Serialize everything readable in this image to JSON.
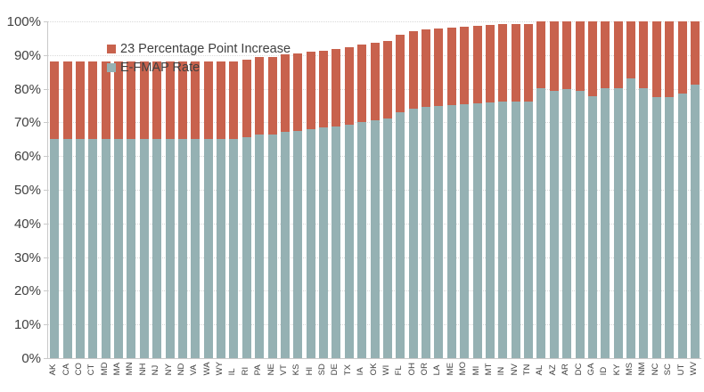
{
  "chart_data": {
    "type": "bar",
    "stacked": true,
    "title": "",
    "xlabel": "",
    "ylabel": "",
    "ylim": [
      0,
      100
    ],
    "y_tick_labels": [
      "0%",
      "10%",
      "20%",
      "30%",
      "40%",
      "50%",
      "60%",
      "70%",
      "80%",
      "90%",
      "100%"
    ],
    "grid": "horizontal-dotted",
    "legend_position": "top-left-inside",
    "cap_percent": 100,
    "increase_points": 23,
    "legend": [
      {
        "name": "23 Percentage Point Increase",
        "color": "#c8624d"
      },
      {
        "name": "E-FMAP Rate",
        "color": "#95b1b3"
      }
    ],
    "categories": [
      "AK",
      "CA",
      "CO",
      "CT",
      "MD",
      "MA",
      "MN",
      "NH",
      "NJ",
      "NY",
      "ND",
      "VA",
      "WA",
      "WY",
      "IL",
      "RI",
      "PA",
      "NE",
      "VT",
      "KS",
      "HI",
      "SD",
      "DE",
      "TX",
      "IA",
      "OK",
      "WI",
      "FL",
      "OH",
      "OR",
      "LA",
      "ME",
      "MO",
      "MI",
      "MT",
      "IN",
      "NV",
      "TN",
      "AL",
      "AZ",
      "AR",
      "DC",
      "GA",
      "ID",
      "KY",
      "MS",
      "NM",
      "NC",
      "SC",
      "UT",
      "WV"
    ],
    "series": [
      {
        "name": "E-FMAP Rate",
        "color": "#95b1b3",
        "values": [
          65,
          65,
          65,
          65,
          65,
          65,
          65,
          65,
          65,
          65,
          65,
          65,
          65,
          65,
          65,
          65.7,
          66.3,
          66.4,
          67.1,
          67.5,
          68,
          68.4,
          68.8,
          69.4,
          70,
          70.7,
          71.3,
          73.1,
          74,
          74.5,
          74.8,
          75.2,
          75.4,
          75.7,
          76,
          76.1,
          76.2,
          76.3,
          80.2,
          79.3,
          79.8,
          79.5,
          77.8,
          80.2,
          80.2,
          83,
          80.2,
          77.6,
          77.6,
          78.7,
          81.3
        ]
      },
      {
        "name": "23 Percentage Point Increase",
        "color": "#c8624d",
        "values": [
          23,
          23,
          23,
          23,
          23,
          23,
          23,
          23,
          23,
          23,
          23,
          23,
          23,
          23,
          23,
          23,
          23,
          23,
          23,
          23,
          23,
          23,
          23,
          23,
          23,
          23,
          23,
          23,
          23,
          23,
          23,
          23,
          23,
          23,
          23,
          23,
          23,
          23,
          19.8,
          20.7,
          20.2,
          20.5,
          22.2,
          19.8,
          19.8,
          17,
          19.8,
          22.4,
          22.4,
          21.3,
          18.7
        ]
      }
    ]
  }
}
